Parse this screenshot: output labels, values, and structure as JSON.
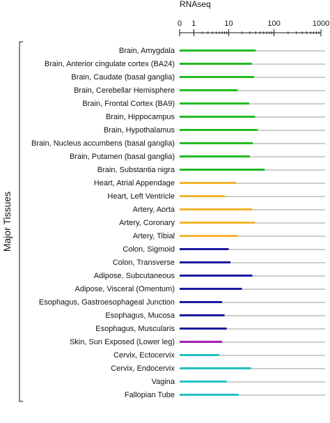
{
  "chart_data": {
    "type": "bar",
    "orientation": "horizontal",
    "xlabel": "RNAseq",
    "xscale": "log1p",
    "xlim": [
      0,
      1000
    ],
    "xticks": [
      0,
      1,
      10,
      100,
      1000
    ],
    "xtick_labels": [
      "0",
      "1",
      "10",
      "100",
      "1000"
    ],
    "group_label": "Major Tissues",
    "categories": [
      "Brain, Amygdala",
      "Brain, Anterior cingulate cortex (BA24)",
      "Brain, Caudate (basal ganglia)",
      "Brain, Cerebellar Hemisphere",
      "Brain, Frontal Cortex (BA9)",
      "Brain, Hippocampus",
      "Brain, Hypothalamus",
      "Brain, Nucleus accumbens (basal ganglia)",
      "Brain, Putamen (basal ganglia)",
      "Brain, Substantia nigra",
      "Heart, Atrial Appendage",
      "Heart, Left Ventricle",
      "Artery, Aorta",
      "Artery, Coronary",
      "Artery, Tibial",
      "Colon, Sigmoid",
      "Colon, Transverse",
      "Adipose, Subcutaneous",
      "Adipose, Visceral (Omentum)",
      "Esophagus, Gastroesophageal Junction",
      "Esophagus, Mucosa",
      "Esophagus, Muscularis",
      "Skin, Sun Exposed (Lower leg)",
      "Cervix, Ectocervix",
      "Cervix, Endocervix",
      "Vagina",
      "Fallopian Tube"
    ],
    "values": [
      40,
      33,
      37,
      16,
      29,
      39,
      44,
      35,
      30,
      63,
      15,
      8,
      34,
      38,
      16,
      10,
      11,
      34,
      20,
      7,
      8,
      9,
      7,
      6,
      32,
      9,
      17
    ],
    "bar_colors": [
      "#22bb22",
      "#22bb22",
      "#22bb22",
      "#22bb22",
      "#22bb22",
      "#22bb22",
      "#22bb22",
      "#22bb22",
      "#22bb22",
      "#22bb22",
      "#f5b32a",
      "#f5b32a",
      "#f5b32a",
      "#f5b32a",
      "#f5b32a",
      "#1a1aa0",
      "#1a1aa0",
      "#1a1aa0",
      "#1a1aa0",
      "#1a1aa0",
      "#1a1aa0",
      "#1a1aa0",
      "#a020b0",
      "#22c2c2",
      "#22c2c2",
      "#22c2c2",
      "#22c2c2"
    ],
    "grid": "horizontal",
    "grid_color": "#999999"
  }
}
